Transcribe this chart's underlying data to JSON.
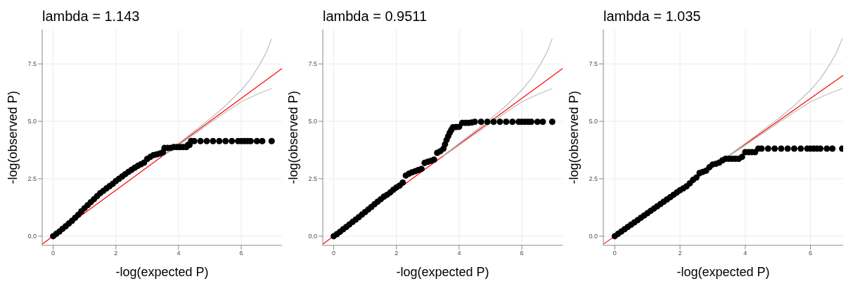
{
  "chart_data": [
    {
      "type": "scatter",
      "title": "lambda = 1.143",
      "xlabel": "-log(expected P)",
      "ylabel": "-log(observed P)",
      "xlim": [
        -0.35,
        7.3
      ],
      "ylim": [
        -0.4,
        9.0
      ],
      "xticks": [
        0,
        2,
        4,
        6
      ],
      "yticks": [
        {
          "value": 0,
          "label": "0.0"
        },
        {
          "value": 2.5,
          "label": "2.5"
        },
        {
          "value": 5,
          "label": "5.0"
        },
        {
          "value": 7.5,
          "label": "7.5"
        }
      ],
      "grid": true,
      "series": [
        {
          "type": "scatter",
          "marker": "circle",
          "color": "#000000",
          "x": [
            0,
            0.1,
            0.2,
            0.3,
            0.4,
            0.5,
            0.6,
            0.7,
            0.8,
            0.9,
            1.0,
            1.1,
            1.2,
            1.3,
            1.4,
            1.5,
            1.6,
            1.7,
            1.8,
            1.9,
            2.0,
            2.1,
            2.2,
            2.3,
            2.4,
            2.5,
            2.6,
            2.7,
            2.8,
            2.9,
            3.0,
            3.1,
            3.2,
            3.3,
            3.4,
            3.5,
            3.55,
            3.65,
            3.75,
            3.85,
            3.95,
            4.05,
            4.15,
            4.25,
            4.3,
            4.35,
            4.4,
            4.5,
            4.7,
            4.9,
            5.1,
            5.3,
            5.5,
            5.7,
            5.9,
            6.0,
            6.1,
            6.2,
            6.3,
            6.5,
            6.67,
            6.97
          ],
          "values": [
            0,
            0.1,
            0.2,
            0.32,
            0.43,
            0.55,
            0.67,
            0.8,
            0.93,
            1.08,
            1.22,
            1.35,
            1.48,
            1.61,
            1.74,
            1.87,
            1.97,
            2.08,
            2.18,
            2.28,
            2.4,
            2.5,
            2.6,
            2.7,
            2.8,
            2.89,
            2.98,
            3.06,
            3.13,
            3.2,
            3.36,
            3.45,
            3.53,
            3.56,
            3.6,
            3.65,
            3.84,
            3.84,
            3.84,
            3.88,
            3.88,
            3.88,
            3.88,
            3.88,
            3.97,
            3.97,
            4.14,
            4.14,
            4.14,
            4.14,
            4.14,
            4.14,
            4.14,
            4.14,
            4.14,
            4.14,
            4.14,
            4.14,
            4.14,
            4.14,
            4.14,
            4.14
          ]
        },
        {
          "type": "line",
          "color": "#ff0000",
          "x": [
            -0.35,
            7.3
          ],
          "values": [
            -0.35,
            7.3
          ]
        },
        {
          "type": "line",
          "color": "#bebebe",
          "x": [
            3.5,
            4,
            4.5,
            5,
            5.5,
            6,
            6.3,
            6.6,
            6.8,
            6.97
          ],
          "values": [
            3.52,
            4.04,
            4.57,
            5.1,
            5.68,
            6.36,
            6.85,
            7.5,
            8.0,
            8.6
          ]
        },
        {
          "type": "line",
          "color": "#bebebe",
          "x": [
            3.5,
            4,
            4.5,
            5,
            5.5,
            6,
            6.5,
            6.97
          ],
          "values": [
            3.48,
            3.96,
            4.44,
            4.92,
            5.4,
            5.85,
            6.17,
            6.43
          ]
        }
      ]
    },
    {
      "type": "scatter",
      "title": "lambda = 0.9511",
      "xlabel": "-log(expected P)",
      "ylabel": "-log(observed P)",
      "xlim": [
        -0.35,
        7.3
      ],
      "ylim": [
        -0.4,
        9.0
      ],
      "xticks": [
        0,
        2,
        4,
        6
      ],
      "yticks": [
        {
          "value": 0,
          "label": "0.0"
        },
        {
          "value": 2.5,
          "label": "2.5"
        },
        {
          "value": 5,
          "label": "5.0"
        },
        {
          "value": 7.5,
          "label": "7.5"
        }
      ],
      "grid": true,
      "series": [
        {
          "type": "scatter",
          "marker": "circle",
          "color": "#000000",
          "x": [
            0,
            0.1,
            0.2,
            0.3,
            0.4,
            0.5,
            0.6,
            0.7,
            0.8,
            0.9,
            1.0,
            1.1,
            1.2,
            1.3,
            1.4,
            1.5,
            1.6,
            1.7,
            1.8,
            1.9,
            2.0,
            2.1,
            2.2,
            2.3,
            2.4,
            2.5,
            2.6,
            2.7,
            2.8,
            2.9,
            3.0,
            3.1,
            3.2,
            3.3,
            3.4,
            3.5,
            3.55,
            3.6,
            3.65,
            3.7,
            3.75,
            3.8,
            3.9,
            4.0,
            4.1,
            4.2,
            4.3,
            4.4,
            4.5,
            4.7,
            4.9,
            5.1,
            5.3,
            5.5,
            5.7,
            5.9,
            6.0,
            6.1,
            6.2,
            6.3,
            6.5,
            6.67,
            6.97
          ],
          "values": [
            0,
            0.09,
            0.19,
            0.3,
            0.4,
            0.51,
            0.62,
            0.72,
            0.83,
            0.94,
            1.05,
            1.16,
            1.27,
            1.39,
            1.5,
            1.61,
            1.72,
            1.8,
            1.9,
            2.02,
            2.12,
            2.2,
            2.33,
            2.64,
            2.72,
            2.78,
            2.83,
            2.88,
            2.93,
            3.19,
            3.24,
            3.28,
            3.33,
            3.63,
            3.7,
            3.81,
            4.0,
            4.19,
            4.35,
            4.5,
            4.62,
            4.74,
            4.75,
            4.76,
            4.93,
            4.93,
            4.93,
            4.95,
            4.98,
            4.98,
            4.98,
            4.98,
            4.98,
            4.98,
            4.98,
            4.98,
            4.98,
            4.98,
            4.98,
            4.98,
            4.98,
            4.98,
            4.98
          ]
        },
        {
          "type": "line",
          "color": "#ff0000",
          "x": [
            -0.35,
            7.3
          ],
          "values": [
            -0.35,
            7.3
          ]
        },
        {
          "type": "line",
          "color": "#bebebe",
          "x": [
            3.5,
            4,
            4.5,
            5,
            5.5,
            6,
            6.3,
            6.6,
            6.8,
            6.97
          ],
          "values": [
            3.52,
            4.04,
            4.57,
            5.1,
            5.68,
            6.36,
            6.85,
            7.5,
            8.0,
            8.6
          ]
        },
        {
          "type": "line",
          "color": "#bebebe",
          "x": [
            3.5,
            4,
            4.5,
            5,
            5.5,
            6,
            6.5,
            6.97
          ],
          "values": [
            3.48,
            3.96,
            4.44,
            4.92,
            5.4,
            5.85,
            6.17,
            6.43
          ]
        }
      ]
    },
    {
      "type": "scatter",
      "title": "lambda = 1.035",
      "xlabel": "-log(expected P)",
      "ylabel": "-log(observed P)",
      "xlim": [
        -0.35,
        7.0
      ],
      "ylim": [
        -0.4,
        9.0
      ],
      "xticks": [
        0,
        2,
        4,
        6
      ],
      "yticks": [
        {
          "value": 0,
          "label": "0.0"
        },
        {
          "value": 2.5,
          "label": "2.5"
        },
        {
          "value": 5,
          "label": "5.0"
        },
        {
          "value": 7.5,
          "label": "7.5"
        }
      ],
      "grid": true,
      "series": [
        {
          "type": "scatter",
          "marker": "circle",
          "color": "#000000",
          "x": [
            0,
            0.1,
            0.2,
            0.3,
            0.4,
            0.5,
            0.6,
            0.7,
            0.8,
            0.9,
            1.0,
            1.1,
            1.2,
            1.3,
            1.4,
            1.5,
            1.6,
            1.7,
            1.8,
            1.9,
            2.0,
            2.1,
            2.2,
            2.3,
            2.4,
            2.5,
            2.6,
            2.7,
            2.8,
            2.9,
            3.0,
            3.1,
            3.2,
            3.3,
            3.4,
            3.5,
            3.6,
            3.7,
            3.8,
            3.9,
            4.0,
            4.1,
            4.2,
            4.3,
            4.4,
            4.5,
            4.7,
            4.9,
            5.1,
            5.3,
            5.5,
            5.7,
            5.9,
            6.0,
            6.1,
            6.2,
            6.3,
            6.5,
            6.67,
            6.97
          ],
          "values": [
            0,
            0.1,
            0.2,
            0.3,
            0.4,
            0.5,
            0.6,
            0.7,
            0.8,
            0.9,
            1.0,
            1.1,
            1.2,
            1.3,
            1.4,
            1.5,
            1.6,
            1.7,
            1.8,
            1.9,
            2.0,
            2.08,
            2.17,
            2.3,
            2.45,
            2.55,
            2.75,
            2.8,
            2.85,
            3.0,
            3.12,
            3.15,
            3.2,
            3.3,
            3.37,
            3.37,
            3.37,
            3.37,
            3.37,
            3.45,
            3.66,
            3.66,
            3.66,
            3.66,
            3.81,
            3.81,
            3.81,
            3.81,
            3.81,
            3.81,
            3.81,
            3.81,
            3.81,
            3.81,
            3.81,
            3.81,
            3.81,
            3.81,
            3.81,
            3.81
          ]
        },
        {
          "type": "line",
          "color": "#ff0000",
          "x": [
            -0.35,
            7.0
          ],
          "values": [
            -0.35,
            7.0
          ]
        },
        {
          "type": "line",
          "color": "#bebebe",
          "x": [
            3.5,
            4,
            4.5,
            5,
            5.5,
            6,
            6.3,
            6.6,
            6.8,
            6.97
          ],
          "values": [
            3.52,
            4.04,
            4.57,
            5.1,
            5.68,
            6.36,
            6.85,
            7.5,
            8.0,
            8.6
          ]
        },
        {
          "type": "line",
          "color": "#bebebe",
          "x": [
            3.5,
            4,
            4.5,
            5,
            5.5,
            6,
            6.5,
            6.97
          ],
          "values": [
            3.48,
            3.96,
            4.44,
            4.92,
            5.4,
            5.85,
            6.17,
            6.43
          ]
        }
      ]
    }
  ]
}
